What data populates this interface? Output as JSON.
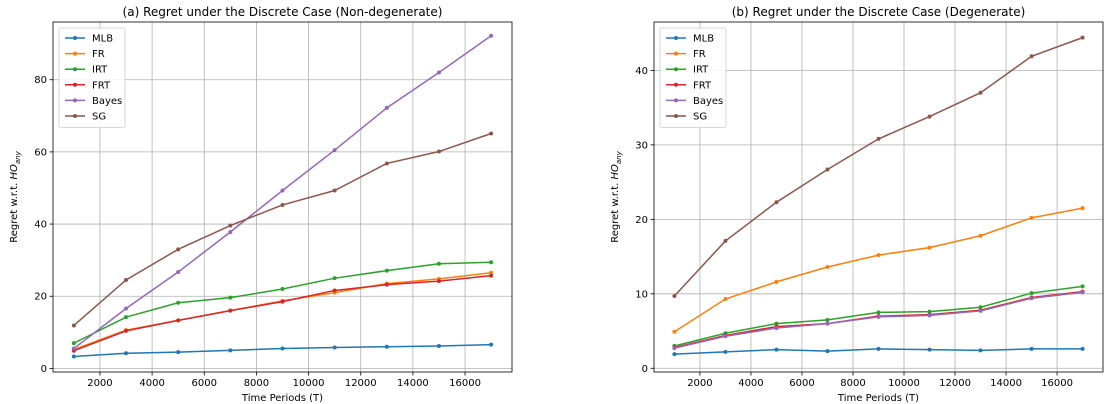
{
  "chart_data": [
    {
      "type": "line",
      "title": "(a) Regret under the Discrete Case (Non-degenerate)",
      "xlabel": "Time Periods (T)",
      "ylabel_main": "Regret w.r.t. ",
      "ylabel_math": "HO",
      "ylabel_sub": "any",
      "xlim": [
        200,
        17800
      ],
      "ylim": [
        -1,
        96
      ],
      "xticks": [
        2000,
        4000,
        6000,
        8000,
        10000,
        12000,
        14000,
        16000
      ],
      "yticks": [
        0,
        20,
        40,
        60,
        80
      ],
      "grid": true,
      "legend_position": "upper-left",
      "x": [
        1000,
        3000,
        5000,
        7000,
        9000,
        11000,
        13000,
        15000,
        17000
      ],
      "series": [
        {
          "name": "MLB",
          "color": "#1f77b4",
          "values": [
            3.3,
            4.2,
            4.5,
            5.0,
            5.5,
            5.8,
            6.0,
            6.2,
            6.6
          ]
        },
        {
          "name": "FR",
          "color": "#ff7f0e",
          "values": [
            5.2,
            10.6,
            13.3,
            16.0,
            18.7,
            21.0,
            23.5,
            24.8,
            26.5
          ]
        },
        {
          "name": "IRT",
          "color": "#2ca02c",
          "values": [
            7.0,
            14.2,
            18.2,
            19.6,
            22.0,
            25.0,
            27.1,
            29.0,
            29.4
          ]
        },
        {
          "name": "FRT",
          "color": "#d62728",
          "values": [
            4.9,
            10.4,
            13.3,
            16.0,
            18.5,
            21.6,
            23.2,
            24.2,
            25.7
          ]
        },
        {
          "name": "Bayes",
          "color": "#9467bd",
          "values": [
            5.5,
            16.6,
            26.7,
            37.8,
            49.3,
            60.5,
            72.2,
            82.0,
            92.2
          ]
        },
        {
          "name": "SG",
          "color": "#8c564b",
          "values": [
            11.9,
            24.5,
            33.0,
            39.6,
            45.3,
            49.3,
            56.8,
            60.1,
            65.1
          ]
        }
      ]
    },
    {
      "type": "line",
      "title": "(b) Regret under the Discrete Case (Degenerate)",
      "xlabel": "Time Periods (T)",
      "ylabel_main": "Regret w.r.t. ",
      "ylabel_math": "HO",
      "ylabel_sub": "any",
      "xlim": [
        200,
        17800
      ],
      "ylim": [
        -0.5,
        46.5
      ],
      "xticks": [
        2000,
        4000,
        6000,
        8000,
        10000,
        12000,
        14000,
        16000
      ],
      "yticks": [
        0,
        10,
        20,
        30,
        40
      ],
      "grid": true,
      "legend_position": "upper-left",
      "x": [
        1000,
        3000,
        5000,
        7000,
        9000,
        11000,
        13000,
        15000,
        17000
      ],
      "series": [
        {
          "name": "MLB",
          "color": "#1f77b4",
          "values": [
            1.9,
            2.2,
            2.5,
            2.3,
            2.6,
            2.5,
            2.4,
            2.6,
            2.6
          ]
        },
        {
          "name": "FR",
          "color": "#ff7f0e",
          "values": [
            4.9,
            9.3,
            11.6,
            13.6,
            15.2,
            16.2,
            17.8,
            20.2,
            21.5
          ]
        },
        {
          "name": "IRT",
          "color": "#2ca02c",
          "values": [
            3.0,
            4.7,
            6.0,
            6.5,
            7.5,
            7.6,
            8.2,
            10.1,
            11.0
          ]
        },
        {
          "name": "FRT",
          "color": "#d62728",
          "values": [
            2.8,
            4.4,
            5.6,
            6.0,
            7.0,
            7.2,
            7.8,
            9.5,
            10.3
          ]
        },
        {
          "name": "Bayes",
          "color": "#9467bd",
          "values": [
            2.7,
            4.3,
            5.4,
            6.0,
            6.9,
            7.1,
            7.7,
            9.4,
            10.2
          ]
        },
        {
          "name": "SG",
          "color": "#8c564b",
          "values": [
            9.7,
            17.1,
            22.3,
            26.7,
            30.8,
            33.8,
            37.0,
            41.9,
            44.4
          ]
        }
      ]
    }
  ]
}
